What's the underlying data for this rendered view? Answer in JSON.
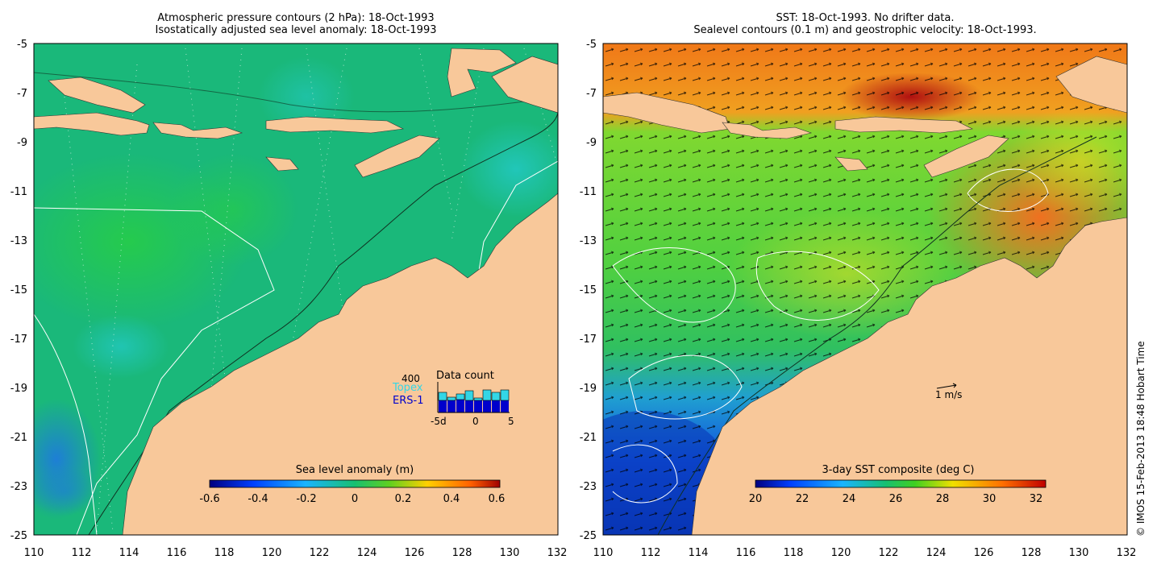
{
  "left_panel": {
    "title_line1": "Atmospheric pressure contours (2 hPa): 18-Oct-1993",
    "title_line2": "Isostatically adjusted sea level anomaly: 18-Oct-1993",
    "colorbar": {
      "label": "Sea level anomaly (m)",
      "ticks": [
        "-0.6",
        "-0.4",
        "-0.2",
        "0",
        "0.2",
        "0.4",
        "0.6"
      ]
    },
    "data_count": {
      "title": "Data count",
      "ymax_label": "400",
      "series1": "Topex",
      "series2": "ERS-1",
      "x_labels": [
        "-5d",
        "0",
        "5"
      ],
      "topex_color": "#33d6e6",
      "ers1_color": "#0000cc",
      "topex_counts": [
        250,
        190,
        230,
        270,
        180,
        280,
        250,
        280
      ],
      "ers1_counts": [
        150,
        150,
        160,
        150,
        150,
        150,
        150,
        150
      ]
    }
  },
  "right_panel": {
    "title_line1": "SST: 18-Oct-1993. No drifter data.",
    "title_line2": "Sealevel contours (0.1 m) and geostrophic velocity: 18-Oct-1993.",
    "colorbar": {
      "label": "3-day SST composite (deg C)",
      "ticks": [
        "20",
        "22",
        "24",
        "26",
        "28",
        "30",
        "32"
      ]
    },
    "scale_label": "1 m/s"
  },
  "axes": {
    "x_ticks": [
      "110",
      "112",
      "114",
      "116",
      "118",
      "120",
      "122",
      "124",
      "126",
      "128",
      "130",
      "132"
    ],
    "y_ticks": [
      "-5",
      "-7",
      "-9",
      "-11",
      "-13",
      "-15",
      "-17",
      "-19",
      "-21",
      "-23",
      "-25"
    ]
  },
  "colors": {
    "land": "#f8c89a",
    "sla_ocean": "#1ab87a",
    "sst_north": "#f07818",
    "sst_mid": "#40d040",
    "sst_south": "#1050e0"
  },
  "credit": "© IMOS 15-Feb-2013 18:48 Hobart Time"
}
